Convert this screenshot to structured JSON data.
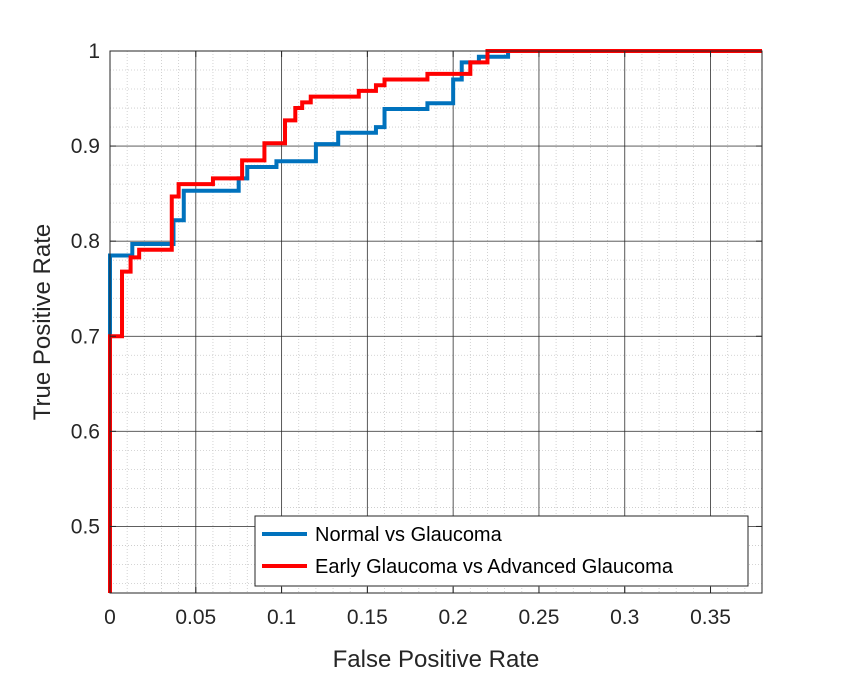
{
  "chart_data": {
    "type": "line",
    "title": "",
    "xlabel": "False Positive Rate",
    "ylabel": "True Positive Rate",
    "xlim": [
      0,
      0.38
    ],
    "ylim": [
      0.43,
      1
    ],
    "xticks": [
      0,
      0.05,
      0.1,
      0.15,
      0.2,
      0.25,
      0.3,
      0.35
    ],
    "xtick_labels": [
      "0",
      "0.05",
      "0.1",
      "0.15",
      "0.2",
      "0.25",
      "0.3",
      "0.35"
    ],
    "yticks": [
      0.5,
      0.6,
      0.7,
      0.8,
      0.9,
      1
    ],
    "ytick_labels": [
      "0.5",
      "0.6",
      "0.7",
      "0.8",
      "0.9",
      "1"
    ],
    "grid": true,
    "minor_grid": true,
    "legend_location": "bottom-right",
    "series": [
      {
        "name": "Normal vs Glaucoma",
        "color": "#0072BD",
        "step": true,
        "x": [
          0,
          0,
          0.013,
          0.037,
          0.043,
          0.075,
          0.08,
          0.097,
          0.12,
          0.133,
          0.155,
          0.16,
          0.185,
          0.2,
          0.205,
          0.215,
          0.232
        ],
        "y": [
          0.7,
          0.785,
          0.797,
          0.822,
          0.853,
          0.866,
          0.878,
          0.884,
          0.902,
          0.914,
          0.92,
          0.939,
          0.945,
          0.97,
          0.988,
          0.994,
          1.0
        ]
      },
      {
        "name": "Early Glaucoma vs Advanced Glaucoma",
        "color": "#FF0000",
        "step": true,
        "x": [
          0,
          0,
          0.007,
          0.012,
          0.017,
          0.036,
          0.04,
          0.06,
          0.077,
          0.09,
          0.102,
          0.108,
          0.112,
          0.117,
          0.145,
          0.155,
          0.16,
          0.164,
          0.185,
          0.21,
          0.22,
          0.38
        ],
        "y": [
          0.43,
          0.7,
          0.768,
          0.783,
          0.791,
          0.847,
          0.86,
          0.866,
          0.885,
          0.903,
          0.927,
          0.94,
          0.946,
          0.952,
          0.958,
          0.964,
          0.97,
          0.97,
          0.976,
          0.988,
          1.0,
          1.0
        ]
      }
    ]
  }
}
